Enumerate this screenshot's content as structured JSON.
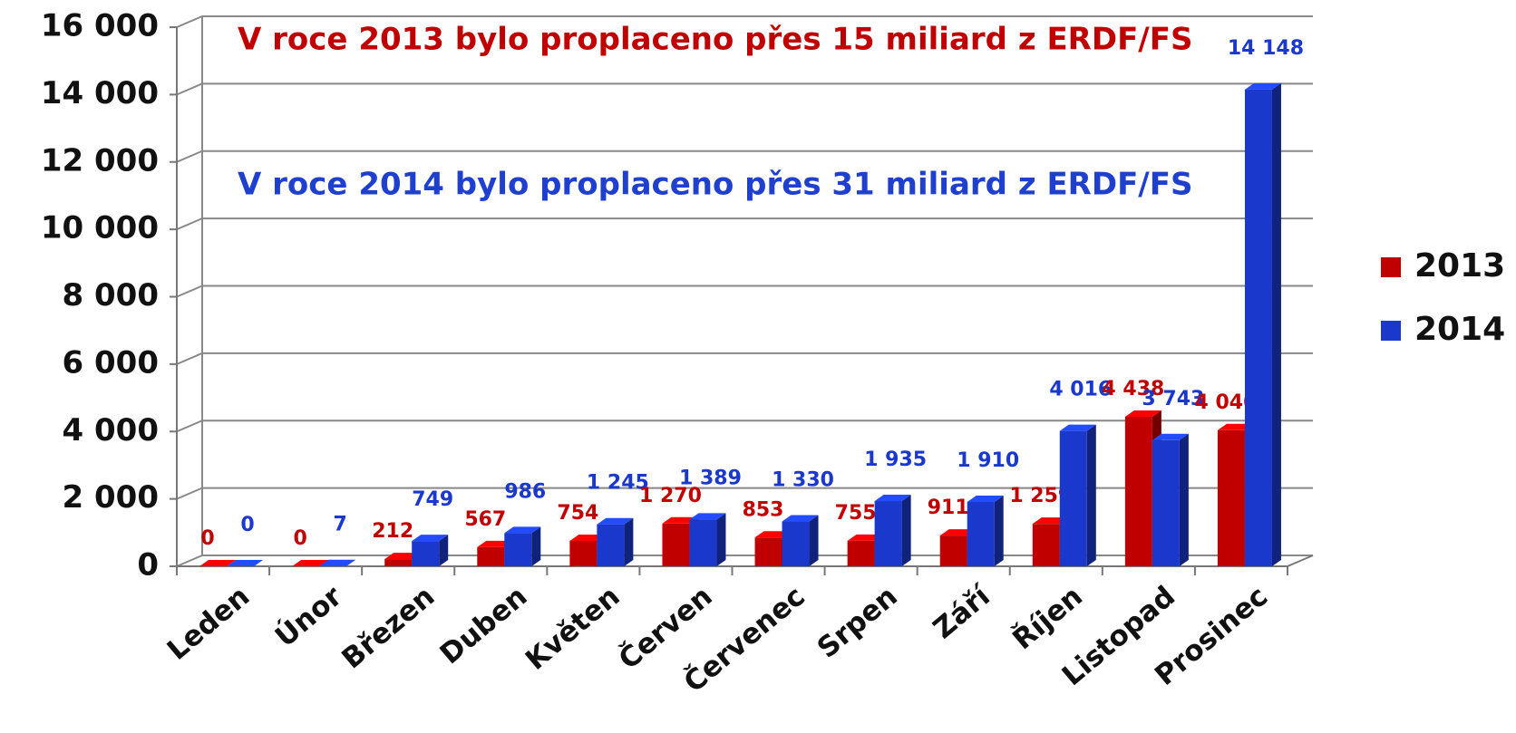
{
  "chart_data": {
    "type": "bar3d",
    "annotations": [
      "V roce 2013 bylo proplaceno přes 15 miliard z ERDF/FS",
      "V roce 2014 bylo proplaceno přes 31 miliard z ERDF/FS"
    ],
    "annotation_colors": [
      "#c00000",
      "#1f3fcf"
    ],
    "categories": [
      "Leden",
      "Únor",
      "Březen",
      "Duben",
      "Květen",
      "Červen",
      "Červenec",
      "Srpen",
      "Září",
      "Říjen",
      "Listopad",
      "Prosinec"
    ],
    "series": [
      {
        "name": "2013",
        "color": "#c00000",
        "values": [
          0,
          0,
          212,
          567,
          754,
          1270,
          853,
          755,
          911,
          1259,
          4438,
          4040
        ],
        "value_labels": [
          "0",
          "0",
          "212",
          "567",
          "754",
          "1 270",
          "853",
          "755",
          "911",
          "1 259",
          "4 438",
          "4 040"
        ]
      },
      {
        "name": "2014",
        "color": "#1a38cc",
        "values": [
          0,
          7,
          749,
          986,
          1245,
          1389,
          1330,
          1935,
          1910,
          4016,
          3743,
          14148
        ],
        "value_labels": [
          "0",
          "7",
          "749",
          "986",
          "1 245",
          "1 389",
          "1 330",
          "1 935",
          "1 910",
          "4 016",
          "3 743",
          "14 148"
        ]
      }
    ],
    "ylim": [
      0,
      16000
    ],
    "yticks": [
      0,
      {
        "value": 2000,
        "label": "2 000"
      },
      {
        "value": 4000,
        "label": "4 000"
      },
      {
        "value": 6000,
        "label": "6 000"
      },
      {
        "value": 8000,
        "label": "8 000"
      },
      {
        "value": 10000,
        "label": "10 000"
      },
      {
        "value": 12000,
        "label": "12 000"
      },
      {
        "value": 14000,
        "label": "14 000"
      },
      {
        "value": 16000,
        "label": "16 000"
      }
    ],
    "grid": true,
    "legend": "right"
  }
}
